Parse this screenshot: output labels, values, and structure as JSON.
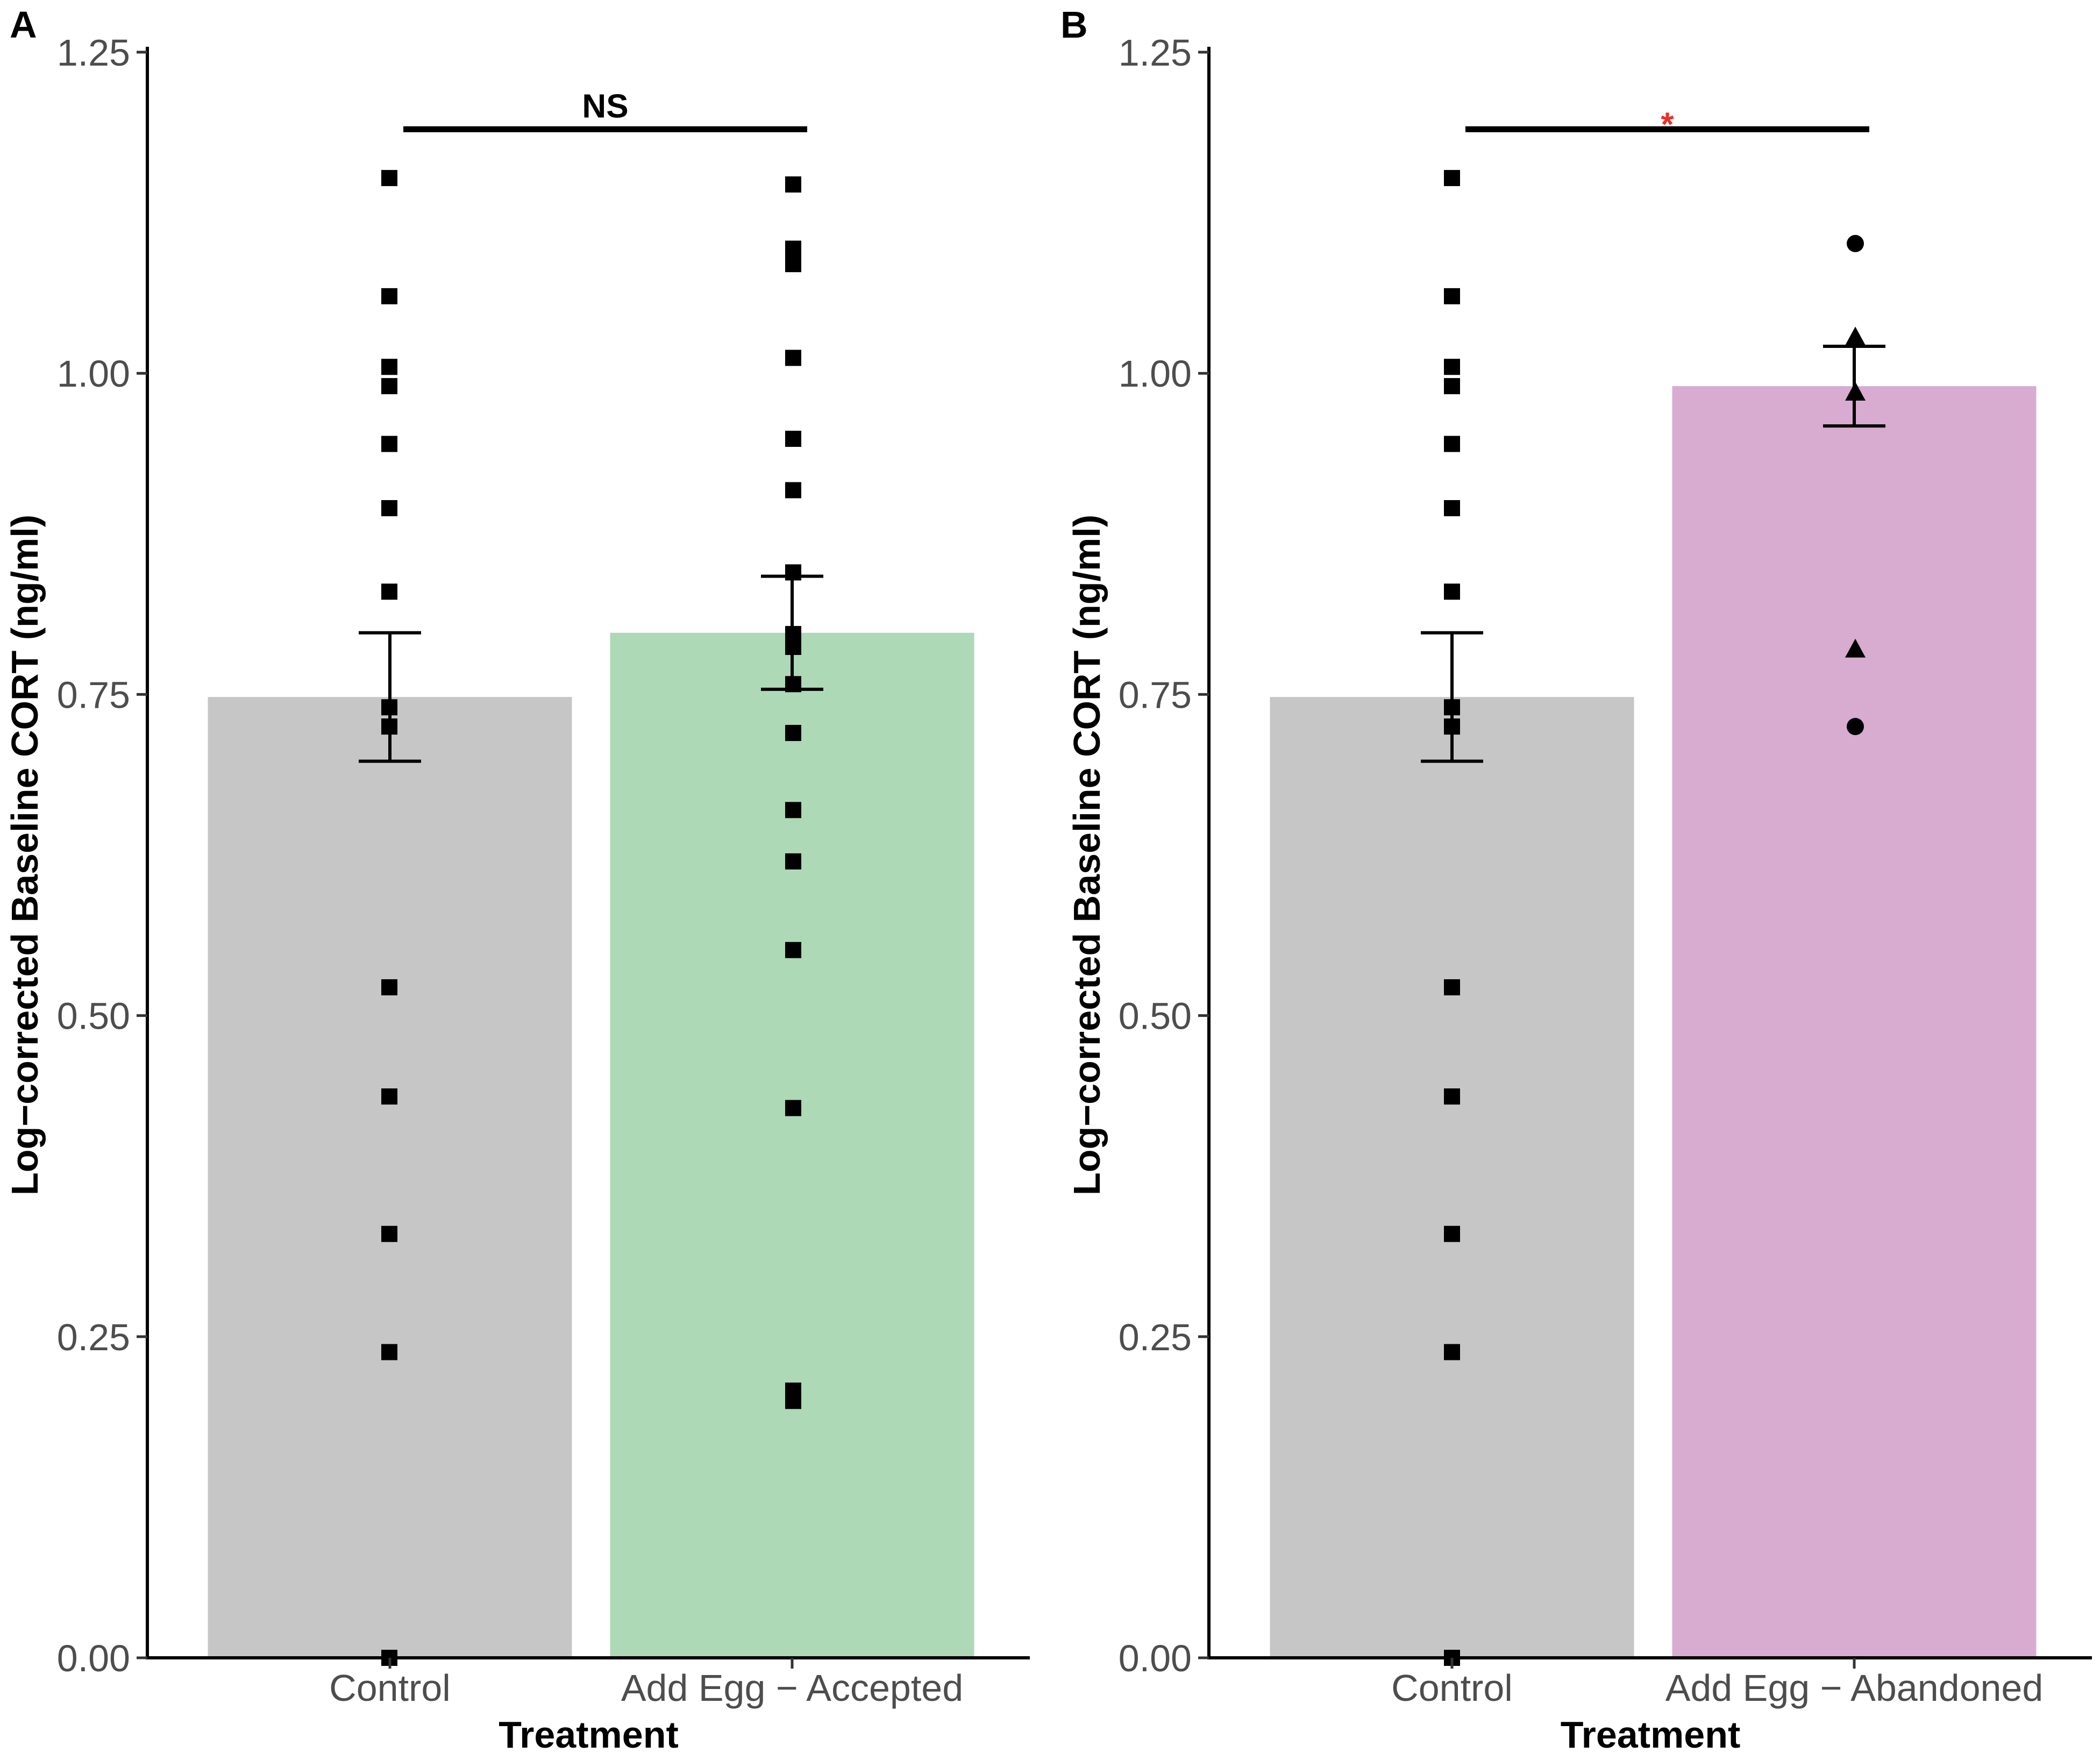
{
  "chart_data": [
    {
      "type": "bar",
      "panel_label": "A",
      "title": "",
      "xlabel": "Treatment",
      "ylabel": "Log−corrected Baseline CORT (ng/ml)",
      "ylim": [
        0,
        1.25
      ],
      "yticks": [
        "0.00",
        "0.25",
        "0.50",
        "0.75",
        "1.00",
        "1.25"
      ],
      "categories": [
        "Control",
        "Add Egg − Accepted"
      ],
      "values": [
        0.748,
        0.798
      ],
      "errors": [
        0.05,
        0.044
      ],
      "bar_colors": [
        "#c6c6c6",
        "#add9b6"
      ],
      "points": [
        [
          {
            "y": 1.152,
            "shape": "square"
          },
          {
            "y": 1.06,
            "shape": "square"
          },
          {
            "y": 1.005,
            "shape": "square"
          },
          {
            "y": 0.99,
            "shape": "square"
          },
          {
            "y": 0.945,
            "shape": "square"
          },
          {
            "y": 0.895,
            "shape": "square"
          },
          {
            "y": 0.83,
            "shape": "square"
          },
          {
            "y": 0.74,
            "shape": "square"
          },
          {
            "y": 0.725,
            "shape": "square"
          },
          {
            "y": 0.522,
            "shape": "square"
          },
          {
            "y": 0.437,
            "shape": "square"
          },
          {
            "y": 0.33,
            "shape": "square"
          },
          {
            "y": 0.238,
            "shape": "square"
          },
          {
            "y": 0.0,
            "shape": "square"
          }
        ],
        [
          {
            "y": 1.147,
            "shape": "square"
          },
          {
            "y": 1.097,
            "shape": "square"
          },
          {
            "y": 1.085,
            "shape": "square"
          },
          {
            "y": 1.012,
            "shape": "square"
          },
          {
            "y": 0.949,
            "shape": "square"
          },
          {
            "y": 0.909,
            "shape": "square"
          },
          {
            "y": 0.845,
            "shape": "square"
          },
          {
            "y": 0.797,
            "shape": "square"
          },
          {
            "y": 0.787,
            "shape": "square"
          },
          {
            "y": 0.758,
            "shape": "square"
          },
          {
            "y": 0.72,
            "shape": "square"
          },
          {
            "y": 0.66,
            "shape": "square"
          },
          {
            "y": 0.62,
            "shape": "square"
          },
          {
            "y": 0.551,
            "shape": "square"
          },
          {
            "y": 0.428,
            "shape": "square"
          },
          {
            "y": 0.208,
            "shape": "square"
          },
          {
            "y": 0.2,
            "shape": "square"
          }
        ]
      ],
      "significance": {
        "label": "NS",
        "color": "#000000",
        "y": 1.19
      }
    },
    {
      "type": "bar",
      "panel_label": "B",
      "title": "",
      "xlabel": "Treatment",
      "ylabel": "Log−corrected Baseline CORT (ng/ml)",
      "ylim": [
        0,
        1.25
      ],
      "yticks": [
        "0.00",
        "0.25",
        "0.50",
        "0.75",
        "1.00",
        "1.25"
      ],
      "categories": [
        "Control",
        "Add Egg − Abandoned"
      ],
      "values": [
        0.748,
        0.99
      ],
      "errors": [
        0.05,
        0.031
      ],
      "bar_colors": [
        "#c6c6c6",
        "#d7acd0"
      ],
      "points": [
        [
          {
            "y": 1.152,
            "shape": "square"
          },
          {
            "y": 1.06,
            "shape": "square"
          },
          {
            "y": 1.005,
            "shape": "square"
          },
          {
            "y": 0.99,
            "shape": "square"
          },
          {
            "y": 0.945,
            "shape": "square"
          },
          {
            "y": 0.895,
            "shape": "square"
          },
          {
            "y": 0.83,
            "shape": "square"
          },
          {
            "y": 0.74,
            "shape": "square"
          },
          {
            "y": 0.725,
            "shape": "square"
          },
          {
            "y": 0.522,
            "shape": "square"
          },
          {
            "y": 0.437,
            "shape": "square"
          },
          {
            "y": 0.33,
            "shape": "square"
          },
          {
            "y": 0.238,
            "shape": "square"
          },
          {
            "y": 0.0,
            "shape": "square"
          }
        ],
        [
          {
            "y": 1.101,
            "shape": "circle"
          },
          {
            "y": 1.028,
            "shape": "triangle"
          },
          {
            "y": 0.985,
            "shape": "triangle"
          },
          {
            "y": 0.785,
            "shape": "triangle"
          },
          {
            "y": 0.725,
            "shape": "circle"
          }
        ]
      ],
      "significance": {
        "label": "*",
        "color": "#e8302a",
        "y": 1.19
      }
    }
  ]
}
